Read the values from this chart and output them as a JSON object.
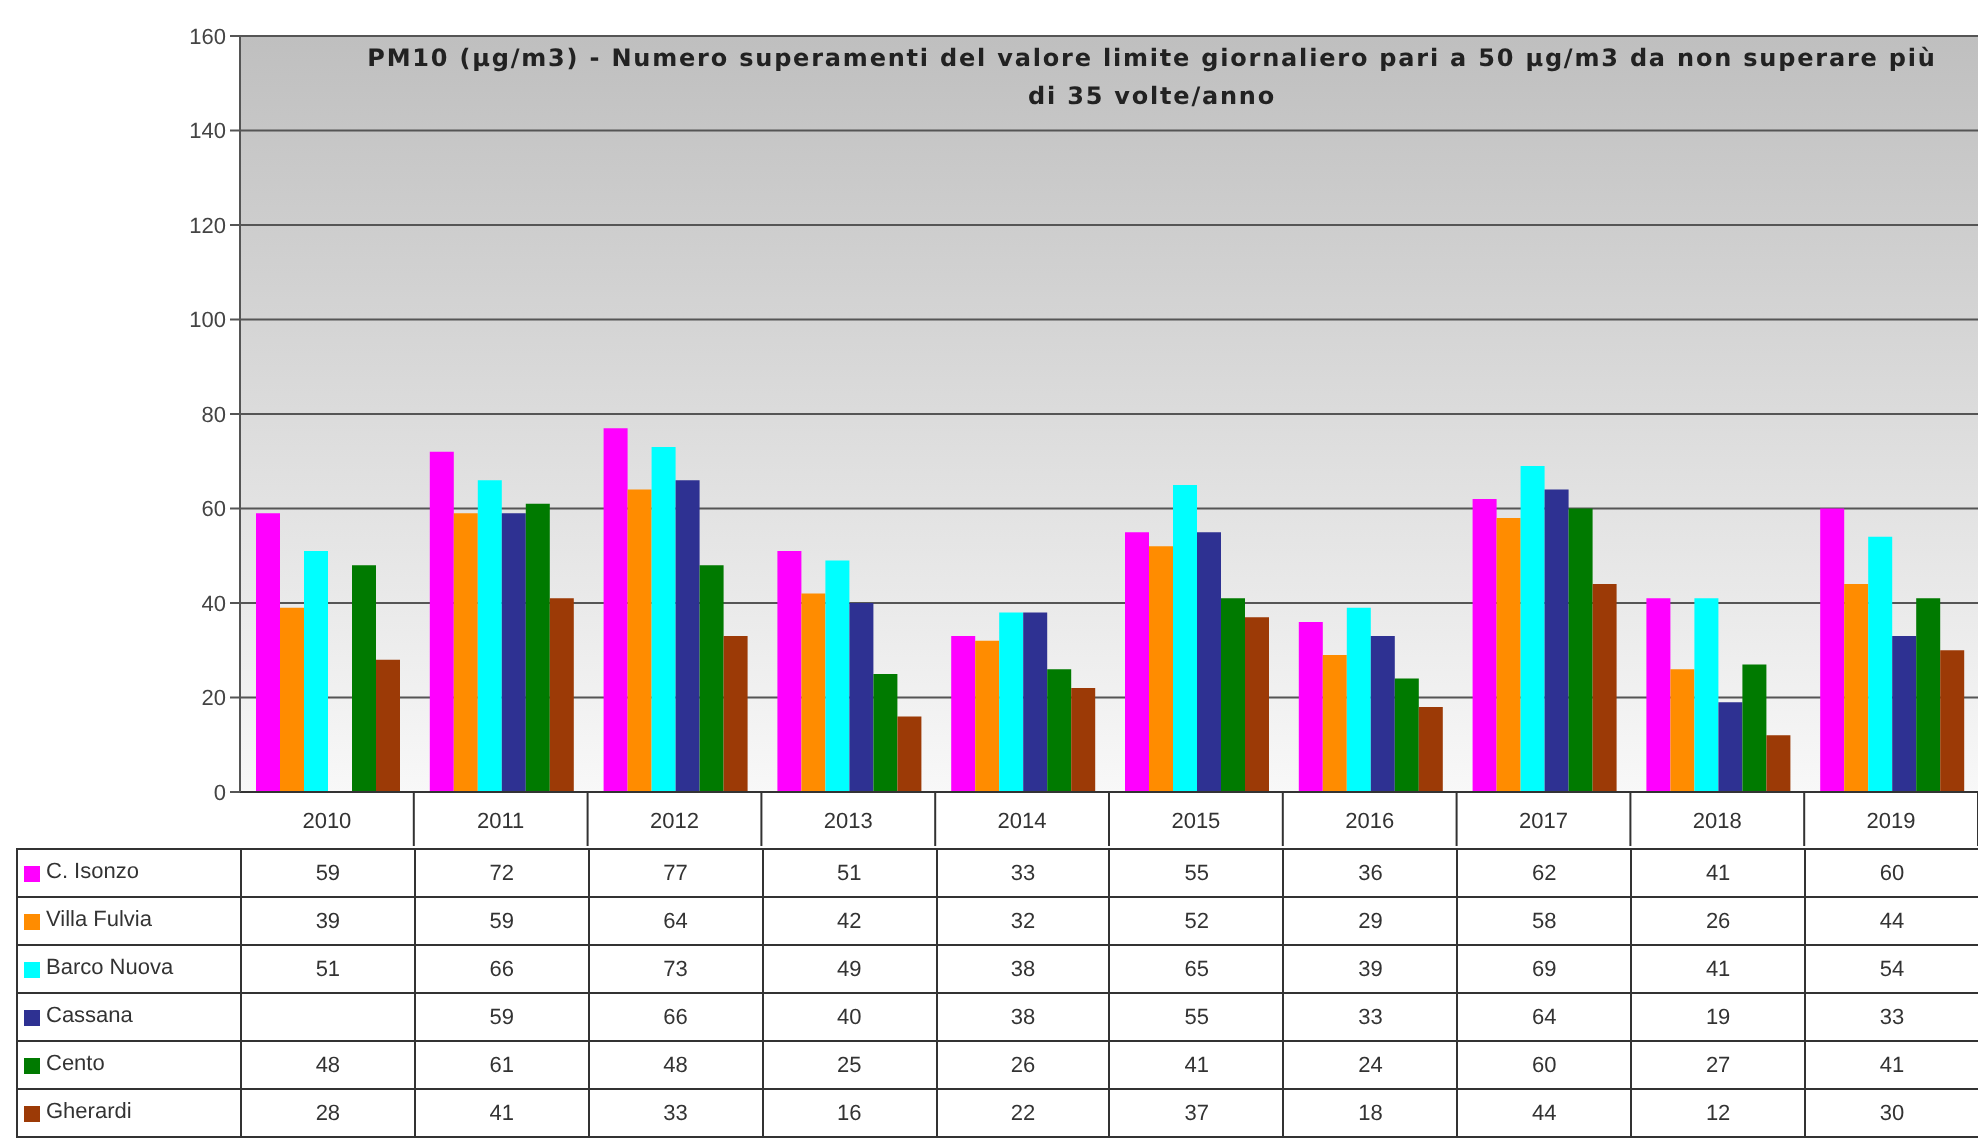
{
  "chart_data": {
    "type": "bar",
    "title": "PM10 (µg/m3) - Numero superamenti del valore limite giornaliero pari a 50 µg/m3 da non superare più di 35 volte/anno",
    "categories": [
      "2010",
      "2011",
      "2012",
      "2013",
      "2014",
      "2015",
      "2016",
      "2017",
      "2018",
      "2019"
    ],
    "series": [
      {
        "name": "C. Isonzo",
        "color": "#ff00ff",
        "values": [
          59,
          72,
          77,
          51,
          33,
          55,
          36,
          62,
          41,
          60
        ]
      },
      {
        "name": "Villa Fulvia",
        "color": "#ff8c00",
        "values": [
          39,
          59,
          64,
          42,
          32,
          52,
          29,
          58,
          26,
          44
        ]
      },
      {
        "name": "Barco Nuova",
        "color": "#00ffff",
        "values": [
          51,
          66,
          73,
          49,
          38,
          65,
          39,
          69,
          41,
          54
        ]
      },
      {
        "name": "Cassana",
        "color": "#2e3192",
        "values": [
          null,
          59,
          66,
          40,
          38,
          55,
          33,
          64,
          19,
          33
        ]
      },
      {
        "name": "Cento",
        "color": "#007a00",
        "values": [
          48,
          61,
          48,
          25,
          26,
          41,
          24,
          60,
          27,
          41
        ]
      },
      {
        "name": "Gherardi",
        "color": "#9c3a06",
        "values": [
          28,
          41,
          33,
          16,
          22,
          37,
          18,
          44,
          12,
          30
        ]
      }
    ],
    "ylim": [
      0,
      160
    ],
    "yticks": [
      0,
      20,
      40,
      60,
      80,
      100,
      120,
      140,
      160
    ],
    "grid": "y",
    "legend": "bottom left",
    "data_labels": true
  }
}
